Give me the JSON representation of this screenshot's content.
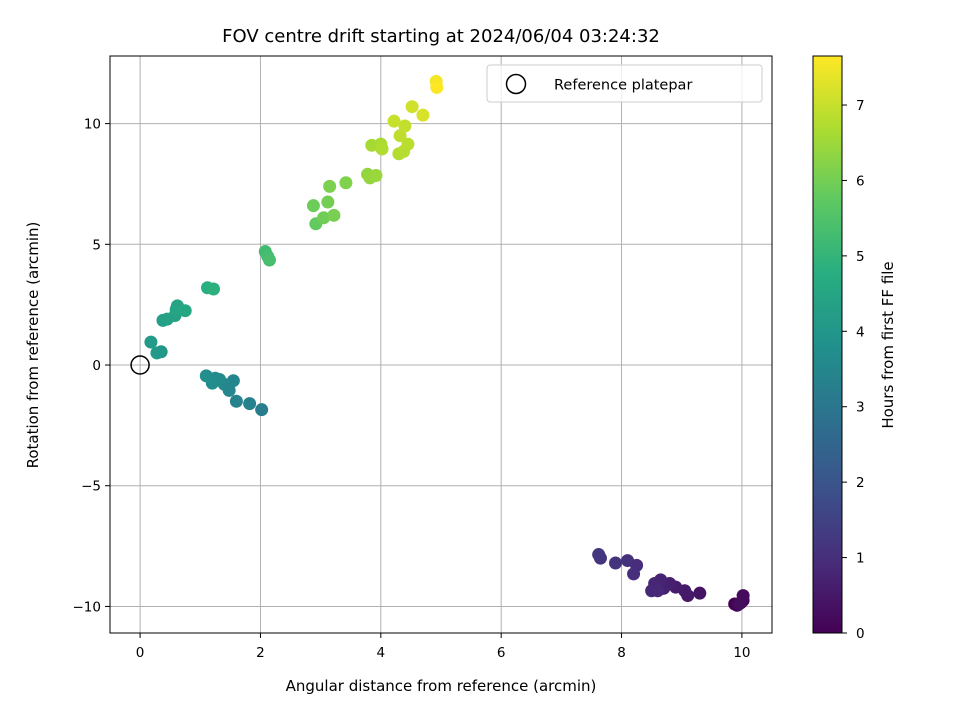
{
  "chart_data": {
    "type": "scatter",
    "title": "FOV centre drift starting at 2024/06/04 03:24:32",
    "xlabel": "Angular distance from reference (arcmin)",
    "ylabel": "Rotation from reference (arcmin)",
    "xlim": [
      -0.5,
      10.5
    ],
    "ylim": [
      -11.1,
      12.8
    ],
    "xticks": [
      0,
      2,
      4,
      6,
      8,
      10
    ],
    "yticks": [
      -10,
      -5,
      0,
      5,
      10
    ],
    "grid": true,
    "legend": {
      "location": "top-right",
      "entries": [
        "Reference platepar"
      ]
    },
    "reference_point": {
      "x": 0,
      "y": 0,
      "label": "Reference platepar"
    },
    "colorbar": {
      "label": "Hours from first FF file",
      "colormap": "viridis",
      "range": [
        0,
        7.65
      ],
      "ticks": [
        0,
        1,
        2,
        3,
        4,
        5,
        6,
        7
      ]
    },
    "points": [
      {
        "x": 9.88,
        "y": -9.9,
        "t": 0.0
      },
      {
        "x": 9.92,
        "y": -9.95,
        "t": 0.05
      },
      {
        "x": 9.98,
        "y": -9.85,
        "t": 0.1
      },
      {
        "x": 10.02,
        "y": -9.75,
        "t": 0.15
      },
      {
        "x": 10.02,
        "y": -9.55,
        "t": 0.2
      },
      {
        "x": 9.95,
        "y": -9.9,
        "t": 0.25
      },
      {
        "x": 9.3,
        "y": -9.45,
        "t": 0.4
      },
      {
        "x": 9.1,
        "y": -9.55,
        "t": 0.5
      },
      {
        "x": 9.05,
        "y": -9.35,
        "t": 0.55
      },
      {
        "x": 8.9,
        "y": -9.2,
        "t": 0.6
      },
      {
        "x": 8.8,
        "y": -9.05,
        "t": 0.65
      },
      {
        "x": 8.7,
        "y": -9.25,
        "t": 0.7
      },
      {
        "x": 8.65,
        "y": -8.9,
        "t": 0.75
      },
      {
        "x": 8.55,
        "y": -9.05,
        "t": 0.8
      },
      {
        "x": 8.5,
        "y": -9.35,
        "t": 0.85
      },
      {
        "x": 8.6,
        "y": -9.35,
        "t": 0.88
      },
      {
        "x": 8.25,
        "y": -8.3,
        "t": 0.95
      },
      {
        "x": 8.2,
        "y": -8.65,
        "t": 1.0
      },
      {
        "x": 8.1,
        "y": -8.1,
        "t": 1.05
      },
      {
        "x": 7.9,
        "y": -8.2,
        "t": 1.1
      },
      {
        "x": 7.65,
        "y": -8.0,
        "t": 1.15
      },
      {
        "x": 7.62,
        "y": -7.85,
        "t": 1.2
      },
      {
        "x": 2.02,
        "y": -1.85,
        "t": 3.2
      },
      {
        "x": 1.82,
        "y": -1.6,
        "t": 3.3
      },
      {
        "x": 1.6,
        "y": -1.5,
        "t": 3.35
      },
      {
        "x": 1.55,
        "y": -0.65,
        "t": 3.45
      },
      {
        "x": 1.48,
        "y": -1.05,
        "t": 3.5
      },
      {
        "x": 1.4,
        "y": -0.8,
        "t": 3.55
      },
      {
        "x": 1.32,
        "y": -0.6,
        "t": 3.6
      },
      {
        "x": 1.25,
        "y": -0.55,
        "t": 3.65
      },
      {
        "x": 1.2,
        "y": -0.75,
        "t": 3.7
      },
      {
        "x": 1.1,
        "y": -0.45,
        "t": 3.75
      },
      {
        "x": 0.35,
        "y": 0.55,
        "t": 4.05
      },
      {
        "x": 0.28,
        "y": 0.5,
        "t": 4.1
      },
      {
        "x": 0.18,
        "y": 0.95,
        "t": 4.15
      },
      {
        "x": 0.38,
        "y": 1.85,
        "t": 4.3
      },
      {
        "x": 0.45,
        "y": 1.9,
        "t": 4.35
      },
      {
        "x": 0.58,
        "y": 2.05,
        "t": 4.4
      },
      {
        "x": 0.6,
        "y": 2.3,
        "t": 4.45
      },
      {
        "x": 0.62,
        "y": 2.45,
        "t": 4.5
      },
      {
        "x": 0.75,
        "y": 2.25,
        "t": 4.55
      },
      {
        "x": 1.12,
        "y": 3.2,
        "t": 4.8
      },
      {
        "x": 1.22,
        "y": 3.15,
        "t": 4.85
      },
      {
        "x": 2.08,
        "y": 4.7,
        "t": 5.25
      },
      {
        "x": 2.12,
        "y": 4.5,
        "t": 5.3
      },
      {
        "x": 2.15,
        "y": 4.35,
        "t": 5.35
      },
      {
        "x": 2.92,
        "y": 5.85,
        "t": 5.8
      },
      {
        "x": 2.88,
        "y": 6.6,
        "t": 5.9
      },
      {
        "x": 3.05,
        "y": 6.1,
        "t": 5.95
      },
      {
        "x": 3.12,
        "y": 6.75,
        "t": 6.0
      },
      {
        "x": 3.22,
        "y": 6.2,
        "t": 6.05
      },
      {
        "x": 3.15,
        "y": 7.4,
        "t": 6.1
      },
      {
        "x": 3.42,
        "y": 7.55,
        "t": 6.15
      },
      {
        "x": 3.78,
        "y": 7.9,
        "t": 6.35
      },
      {
        "x": 3.82,
        "y": 7.75,
        "t": 6.4
      },
      {
        "x": 3.92,
        "y": 7.85,
        "t": 6.45
      },
      {
        "x": 3.85,
        "y": 9.1,
        "t": 6.6
      },
      {
        "x": 4.0,
        "y": 9.15,
        "t": 6.65
      },
      {
        "x": 4.02,
        "y": 8.95,
        "t": 6.7
      },
      {
        "x": 4.3,
        "y": 8.75,
        "t": 6.75
      },
      {
        "x": 4.38,
        "y": 8.85,
        "t": 6.8
      },
      {
        "x": 4.45,
        "y": 9.15,
        "t": 6.85
      },
      {
        "x": 4.32,
        "y": 9.5,
        "t": 6.9
      },
      {
        "x": 4.4,
        "y": 9.9,
        "t": 6.95
      },
      {
        "x": 4.22,
        "y": 10.1,
        "t": 7.0
      },
      {
        "x": 4.52,
        "y": 10.7,
        "t": 7.1
      },
      {
        "x": 4.7,
        "y": 10.35,
        "t": 7.2
      },
      {
        "x": 4.92,
        "y": 11.75,
        "t": 7.55
      },
      {
        "x": 4.93,
        "y": 11.5,
        "t": 7.65
      }
    ]
  }
}
